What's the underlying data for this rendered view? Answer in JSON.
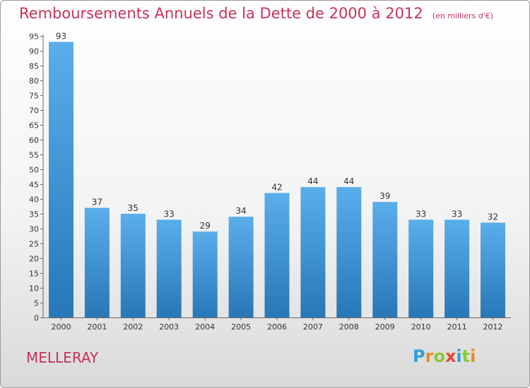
{
  "chart_data": {
    "type": "bar",
    "title": "Remboursements Annuels de la Dette de 2000 à 2012",
    "unit_note": "(en milliers d'€)",
    "categories": [
      "2000",
      "2001",
      "2002",
      "2003",
      "2004",
      "2005",
      "2006",
      "2007",
      "2008",
      "2009",
      "2010",
      "2011",
      "2012"
    ],
    "values": [
      93,
      37,
      35,
      33,
      29,
      34,
      42,
      44,
      44,
      39,
      33,
      33,
      32
    ],
    "ylim": [
      0,
      95
    ],
    "yticks": [
      0,
      5,
      10,
      15,
      20,
      25,
      30,
      35,
      40,
      45,
      50,
      55,
      60,
      65,
      70,
      75,
      80,
      85,
      90,
      95
    ],
    "xlabel": "",
    "ylabel": "",
    "grid": false,
    "bar_color_top": "#5aaeea",
    "bar_color_bottom": "#2877b8"
  },
  "footer": {
    "town": "MELLERAY",
    "logo_letters": [
      {
        "ch": "P",
        "color": "#2f9fd8"
      },
      {
        "ch": "r",
        "color": "#f08a1c"
      },
      {
        "ch": "o",
        "color": "#8cc63f"
      },
      {
        "ch": "x",
        "color": "#e8452c"
      },
      {
        "ch": "i",
        "color": "#2f9fd8"
      },
      {
        "ch": "t",
        "color": "#8cc63f"
      },
      {
        "ch": "i",
        "color": "#f08a1c"
      }
    ]
  }
}
